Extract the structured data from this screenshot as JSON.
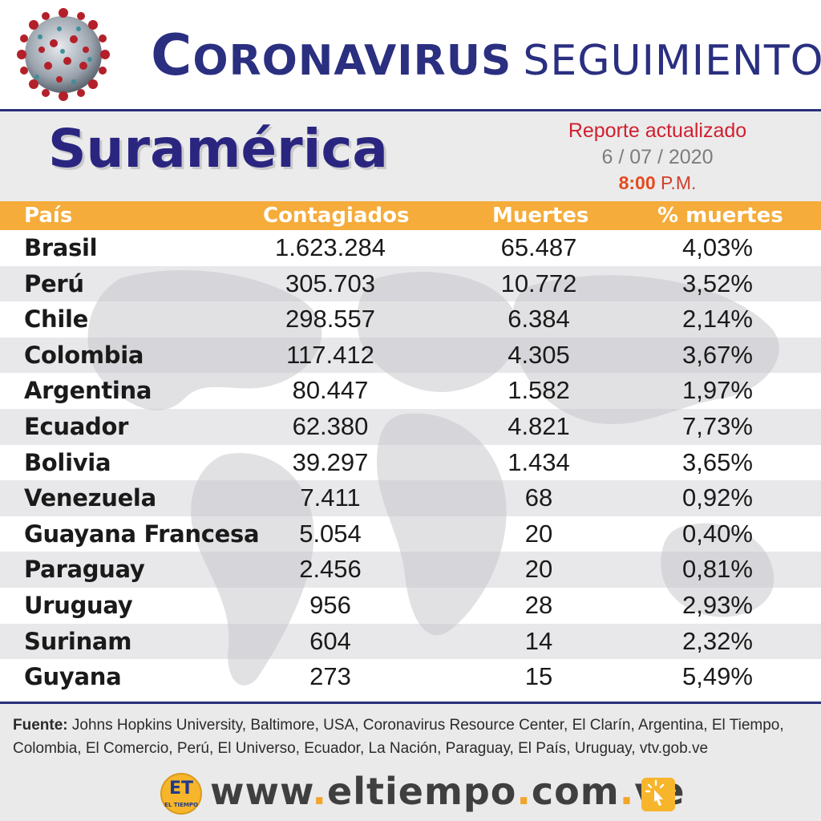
{
  "header": {
    "title_first_letter": "C",
    "title_rest": "ORONAVIRUS",
    "title_light": "SEGUIMIENTO"
  },
  "subheader": {
    "region": "Suramérica",
    "report_label": "Reporte actualizado",
    "report_date": "6 / 07 / 2020",
    "report_time": "8:00",
    "report_ampm": "P.M."
  },
  "table": {
    "headers": [
      "País",
      "Contagiados",
      "Muertes",
      "% muertes"
    ],
    "rows": [
      {
        "country": "Brasil",
        "cases": "1.623.284",
        "deaths": "65.487",
        "pct": "4,03%"
      },
      {
        "country": "Perú",
        "cases": "305.703",
        "deaths": "10.772",
        "pct": "3,52%"
      },
      {
        "country": "Chile",
        "cases": "298.557",
        "deaths": "6.384",
        "pct": "2,14%"
      },
      {
        "country": "Colombia",
        "cases": "117.412",
        "deaths": "4.305",
        "pct": "3,67%"
      },
      {
        "country": "Argentina",
        "cases": "80.447",
        "deaths": "1.582",
        "pct": "1,97%"
      },
      {
        "country": "Ecuador",
        "cases": "62.380",
        "deaths": "4.821",
        "pct": "7,73%"
      },
      {
        "country": "Bolivia",
        "cases": "39.297",
        "deaths": "1.434",
        "pct": "3,65%"
      },
      {
        "country": "Venezuela",
        "cases": "7.411",
        "deaths": "68",
        "pct": "0,92%"
      },
      {
        "country": "Guayana Francesa",
        "cases": "5.054",
        "deaths": "20",
        "pct": "0,40%"
      },
      {
        "country": "Paraguay",
        "cases": "2.456",
        "deaths": "20",
        "pct": "0,81%"
      },
      {
        "country": "Uruguay",
        "cases": "956",
        "deaths": "28",
        "pct": "2,93%"
      },
      {
        "country": "Surinam",
        "cases": "604",
        "deaths": "14",
        "pct": "2,32%"
      },
      {
        "country": "Guyana",
        "cases": "273",
        "deaths": "15",
        "pct": "5,49%"
      }
    ]
  },
  "footer": {
    "source_label": "Fuente:",
    "source_text": " Johns Hopkins University, Baltimore, USA, Coronavirus Resource Center,  El Clarín, Argentina, El Tiempo, Colombia, El Comercio, Perú, El Universo, Ecuador, La Nación, Paraguay, El País, Uruguay, vtv.gob.ve",
    "logo_text": "ET",
    "logo_sub": "EL TIEMPO",
    "site_parts": [
      "www",
      ".",
      "eltiempo",
      ".",
      "com",
      ".",
      "ve"
    ]
  },
  "icons": {
    "virus": "coronavirus-icon",
    "click": "pointer-click-icon"
  },
  "colors": {
    "title_blue": "#2a2f80",
    "header_orange": "#f5ac3a",
    "report_red": "#d0202e",
    "alt_row": "#d6d6da"
  }
}
